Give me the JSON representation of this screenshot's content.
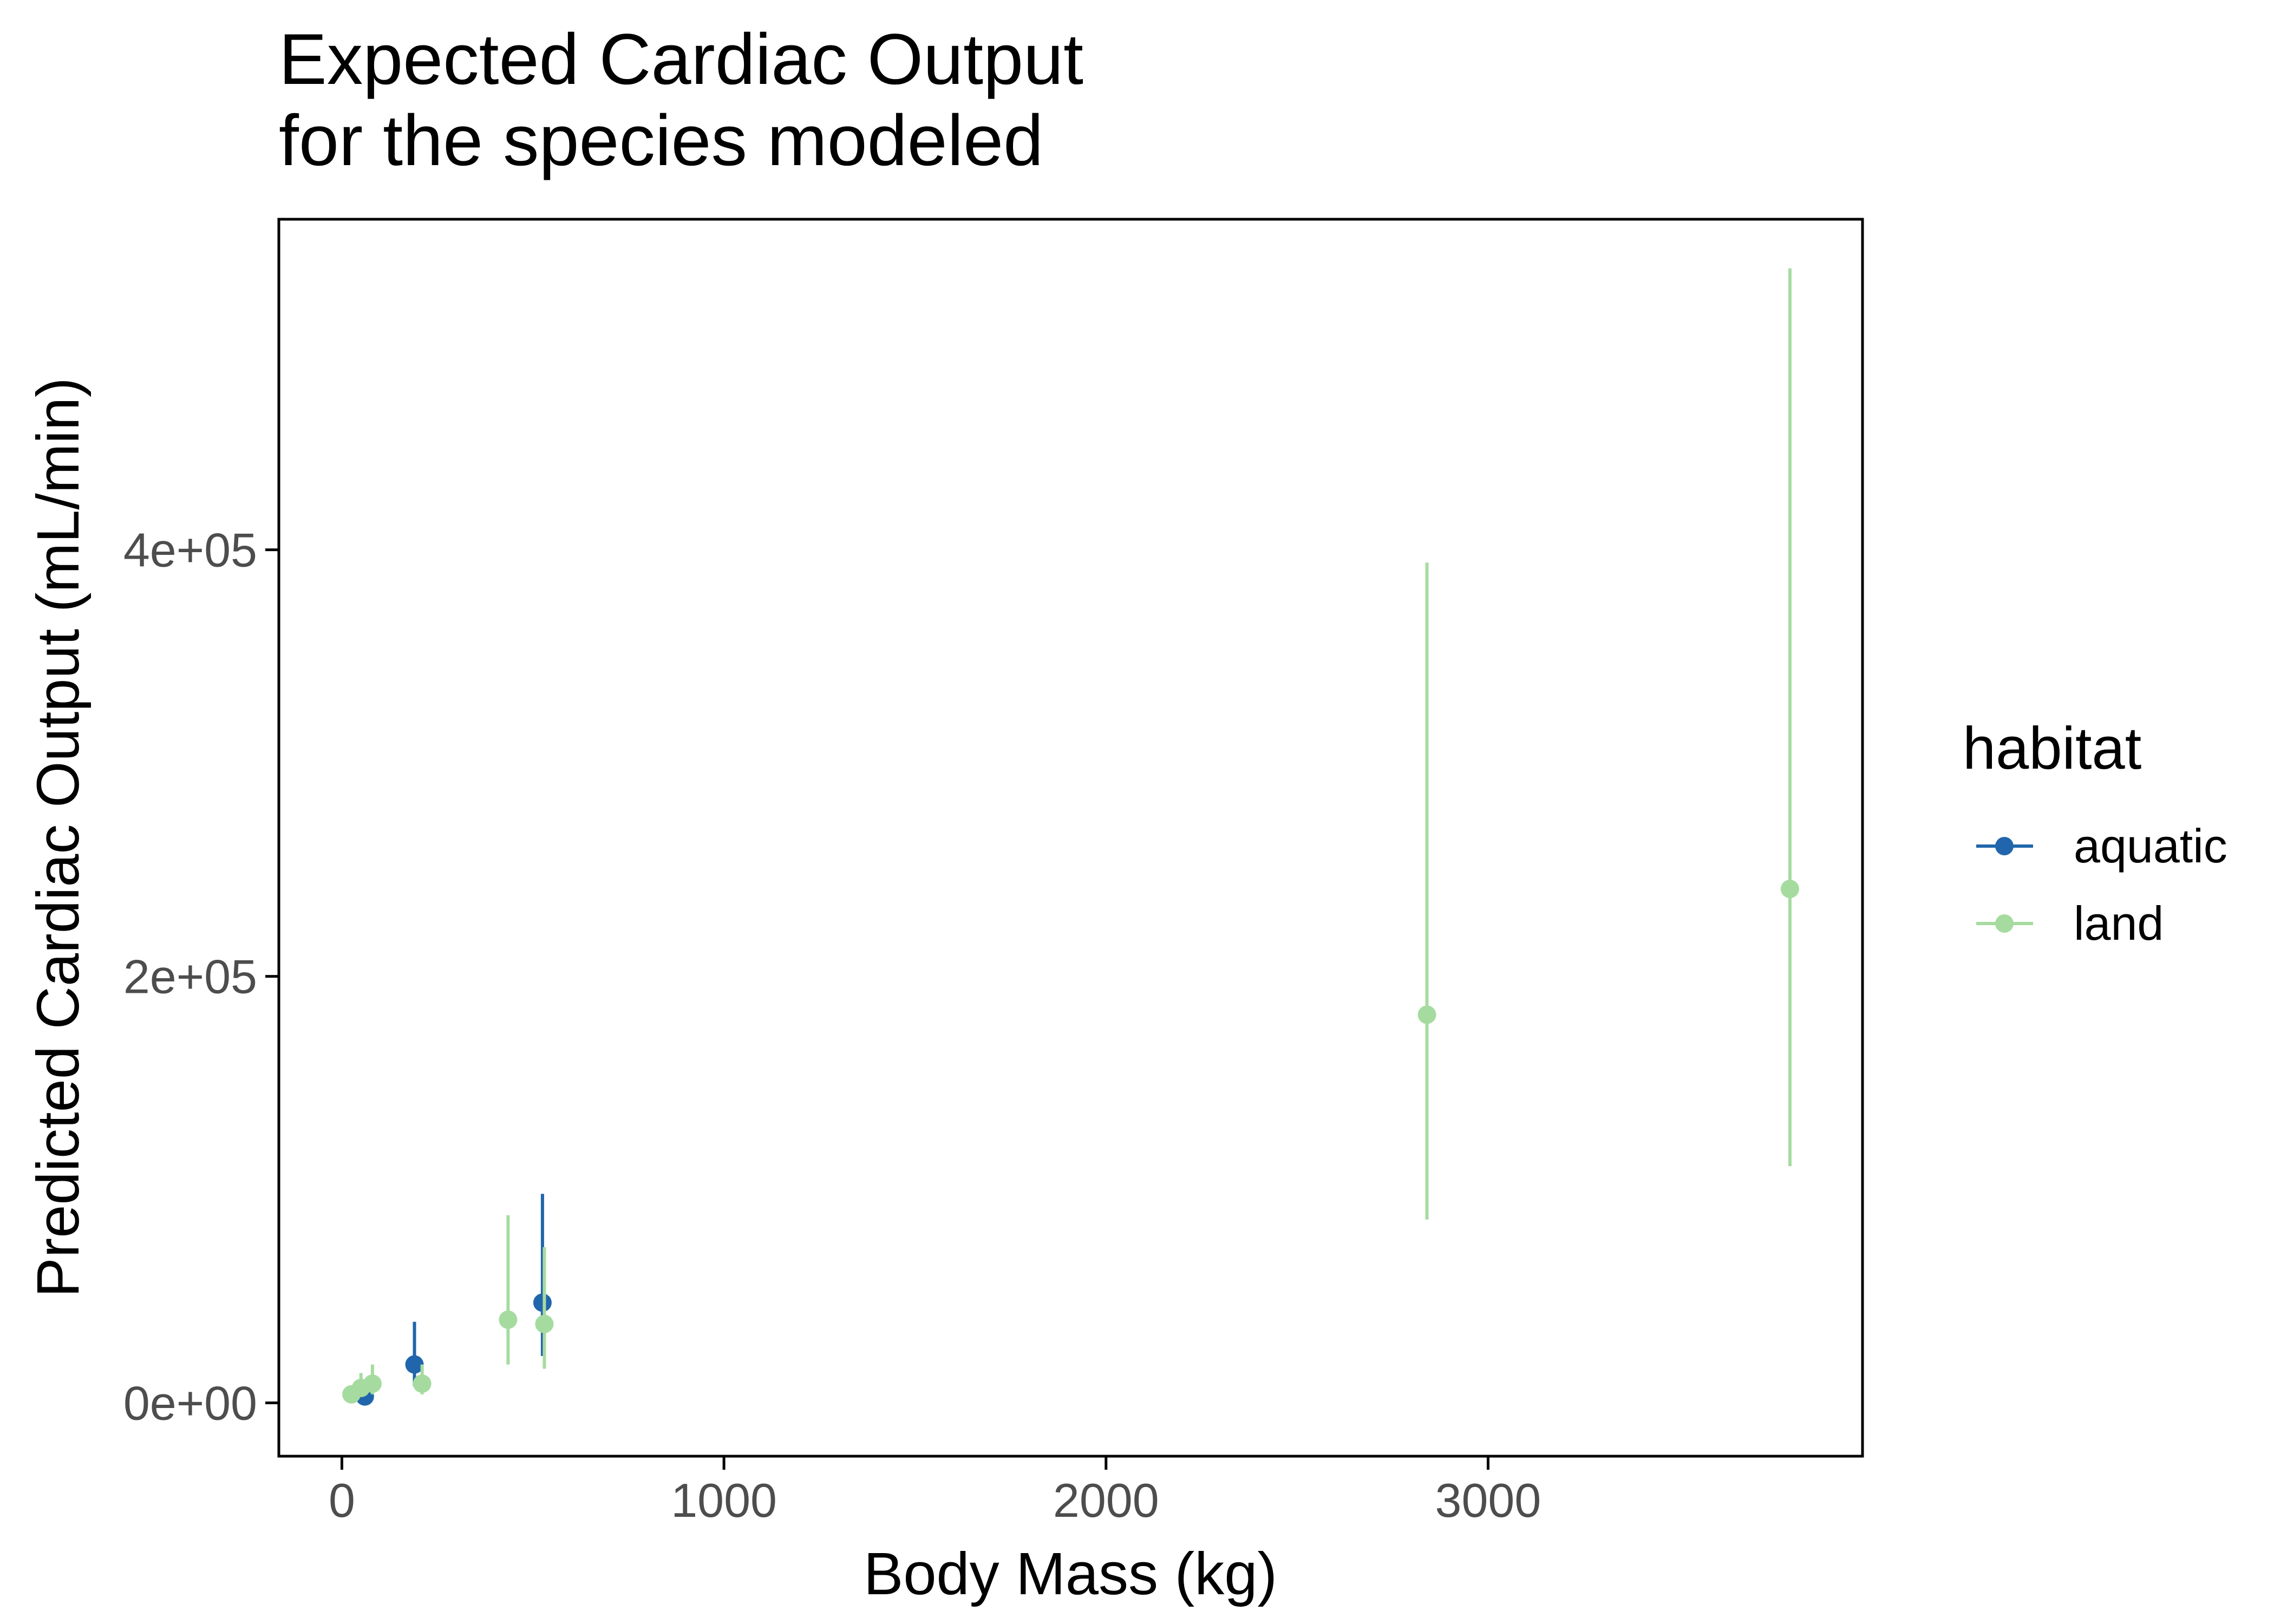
{
  "chart_data": {
    "type": "scatter",
    "title_lines": [
      "Expected Cardiac Output",
      "for the species modeled"
    ],
    "xlabel": "Body Mass (kg)",
    "ylabel": "Predicted Cardiac Output (mL/min)",
    "xlim": [
      -165,
      3980
    ],
    "ylim": [
      -25000,
      555000
    ],
    "x_ticks": [
      0,
      1000,
      2000,
      3000
    ],
    "x_tick_labels": [
      "0",
      "1000",
      "2000",
      "3000"
    ],
    "y_ticks": [
      0,
      200000,
      400000
    ],
    "y_tick_labels": [
      "0e+00",
      "2e+05",
      "4e+05"
    ],
    "grid": false,
    "legend": {
      "title": "habitat",
      "placement": "right",
      "entries": [
        {
          "label": "aquatic",
          "color": "#2166ac"
        },
        {
          "label": "land",
          "color": "#a6dba0"
        }
      ]
    },
    "series": [
      {
        "name": "aquatic",
        "color": "#2166ac",
        "points": [
          {
            "x": 60,
            "y": 3000,
            "ymin": 500,
            "ymax": 9000
          },
          {
            "x": 190,
            "y": 18000,
            "ymin": 8000,
            "ymax": 38000
          },
          {
            "x": 525,
            "y": 47000,
            "ymin": 22000,
            "ymax": 98000
          }
        ]
      },
      {
        "name": "land",
        "color": "#a6dba0",
        "points": [
          {
            "x": 25,
            "y": 4000,
            "ymin": 1500,
            "ymax": 8000
          },
          {
            "x": 50,
            "y": 7000,
            "ymin": 3000,
            "ymax": 14000
          },
          {
            "x": 80,
            "y": 9000,
            "ymin": 4000,
            "ymax": 18000
          },
          {
            "x": 210,
            "y": 9000,
            "ymin": 4000,
            "ymax": 18000
          },
          {
            "x": 435,
            "y": 39000,
            "ymin": 18000,
            "ymax": 88000
          },
          {
            "x": 530,
            "y": 37000,
            "ymin": 16000,
            "ymax": 73000
          },
          {
            "x": 2840,
            "y": 182000,
            "ymin": 86000,
            "ymax": 394000
          },
          {
            "x": 3790,
            "y": 241000,
            "ymin": 111000,
            "ymax": 532000
          }
        ]
      }
    ]
  }
}
